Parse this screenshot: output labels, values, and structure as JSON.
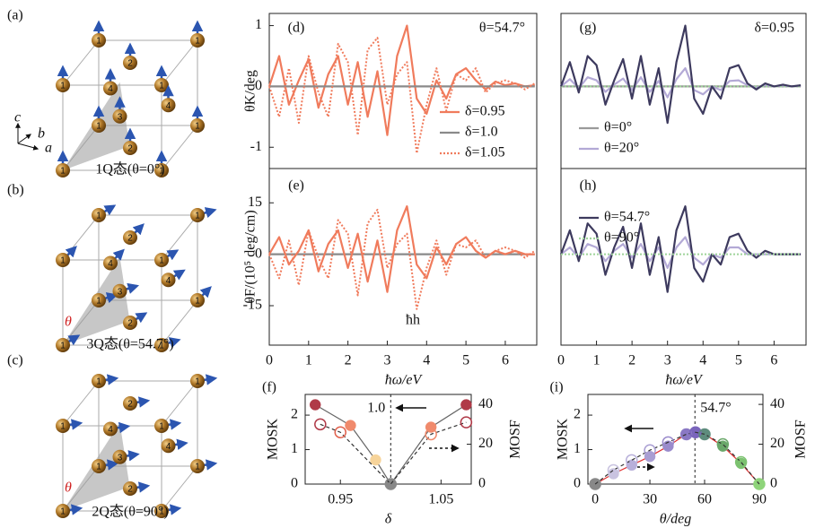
{
  "structures": [
    {
      "label": "(a)",
      "caption": "1Q态(θ=0°)",
      "axes": [
        "c",
        "b",
        "a"
      ],
      "atoms": [
        "1",
        "1",
        "1",
        "1",
        "1",
        "1",
        "1",
        "1",
        "2",
        "2",
        "3",
        "4",
        "4"
      ]
    },
    {
      "label": "(b)",
      "caption": "3Q态(θ=54.7°)",
      "theta": "θ",
      "atoms": [
        "1",
        "1",
        "1",
        "1",
        "1",
        "1",
        "1",
        "1",
        "2",
        "2",
        "3",
        "4",
        "4"
      ]
    },
    {
      "label": "(c)",
      "caption": "2Q态(θ=90°)",
      "theta": "θ",
      "atoms": [
        "1",
        "1",
        "1",
        "1",
        "1",
        "1",
        "1",
        "1",
        "2",
        "2",
        "3",
        "4",
        "4"
      ]
    }
  ],
  "chart_data": [
    {
      "type": "line",
      "label": "(d)",
      "ylabel": "θK/deg",
      "annotation": "θ=54.7°",
      "xlim": [
        0,
        6.8
      ],
      "ylim": [
        -1.35,
        1.2
      ],
      "yticks": [
        -1,
        0,
        1
      ],
      "x": [
        0,
        0.25,
        0.5,
        0.75,
        1,
        1.25,
        1.5,
        1.75,
        2,
        2.25,
        2.5,
        2.75,
        3,
        3.25,
        3.5,
        3.75,
        4,
        4.25,
        4.5,
        4.75,
        5,
        5.25,
        5.5,
        5.75,
        6,
        6.25,
        6.5,
        6.75
      ],
      "series": [
        {
          "name": "δ=0.95",
          "color": "#f07b5c",
          "style": "solid",
          "values": [
            0,
            0.5,
            -0.3,
            0.1,
            0.45,
            -0.35,
            0.2,
            0.5,
            -0.3,
            0.4,
            -0.5,
            0.25,
            -0.8,
            0.5,
            1.0,
            -0.2,
            -0.45,
            0.1,
            -0.2,
            0.2,
            0.3,
            0.1,
            -0.05,
            0.08,
            0.02,
            0.05,
            0,
            0.02
          ]
        },
        {
          "name": "δ=1.0",
          "color": "#8a8a8a",
          "style": "solid",
          "values": [
            0,
            0,
            0,
            0,
            0,
            0,
            0,
            0,
            0,
            0,
            0,
            0,
            0,
            0,
            0,
            0,
            0,
            0,
            0,
            0,
            0,
            0,
            0,
            0,
            0,
            0,
            0,
            0
          ]
        },
        {
          "name": "δ=1.05",
          "color": "#f07b5c",
          "style": "dotted",
          "values": [
            0,
            -0.5,
            0.3,
            -0.6,
            0.5,
            -0.1,
            -0.5,
            0.7,
            0.4,
            -0.8,
            0.6,
            0.8,
            -0.3,
            0.2,
            0.4,
            -1.1,
            -0.3,
            0.3,
            -0.4,
            0.2,
            0.1,
            0.3,
            -0.1,
            0.05,
            0.1,
            0.05,
            -0.05,
            0.05
          ]
        }
      ]
    },
    {
      "type": "line",
      "label": "(e)",
      "ylabel": "θF/(10⁵ deg/cm)",
      "xlabel": "ħω/eV",
      "annotation": "ħh",
      "xlim": [
        0,
        6.8
      ],
      "ylim": [
        -26.5,
        25
      ],
      "xticks": [
        0,
        1,
        2,
        3,
        4,
        5,
        6
      ],
      "yticks": [
        -15,
        0,
        15
      ],
      "x": [
        0,
        0.25,
        0.5,
        0.75,
        1,
        1.25,
        1.5,
        1.75,
        2,
        2.25,
        2.5,
        2.75,
        3,
        3.25,
        3.5,
        3.75,
        4,
        4.25,
        4.5,
        4.75,
        5,
        5.25,
        5.5,
        5.75,
        6,
        6.25,
        6.5,
        6.75
      ],
      "series": [
        {
          "color": "#8a8a8a",
          "style": "solid",
          "values": [
            0,
            0,
            0,
            0,
            0,
            0,
            0,
            0,
            0,
            0,
            0,
            0,
            0,
            0,
            0,
            0,
            0,
            0,
            0,
            0,
            0,
            0,
            0,
            0,
            0,
            0,
            0,
            0
          ]
        },
        {
          "color": "#f07b5c",
          "style": "solid",
          "values": [
            0,
            5,
            -3,
            1,
            7,
            -5,
            3,
            7,
            -4,
            6,
            -8,
            4,
            -11,
            7,
            14,
            -3,
            -7,
            2,
            -3,
            3,
            5,
            1,
            -1,
            1,
            0,
            1,
            0,
            0
          ]
        },
        {
          "color": "#f07b5c",
          "style": "dotted",
          "values": [
            0,
            -7,
            4,
            -9,
            7,
            -1,
            -7,
            10,
            6,
            -12,
            9,
            13,
            -4,
            3,
            6,
            -16,
            -4,
            4,
            -6,
            3,
            2,
            4,
            -1,
            1,
            2,
            1,
            -1,
            1
          ]
        }
      ]
    },
    {
      "type": "line",
      "label": "(g)",
      "annotation": "δ=0.95",
      "xlim": [
        0,
        6.9
      ],
      "ylim": [
        -1.35,
        1.2
      ],
      "x": [
        0,
        0.25,
        0.5,
        0.75,
        1,
        1.25,
        1.5,
        1.75,
        2,
        2.25,
        2.5,
        2.75,
        3,
        3.25,
        3.5,
        3.75,
        4,
        4.25,
        4.5,
        4.75,
        5,
        5.25,
        5.5,
        5.75,
        6,
        6.25,
        6.5,
        6.75
      ],
      "series": [
        {
          "name": "θ=0°",
          "color": "#9a9a9a",
          "style": "solid",
          "values": [
            0,
            0,
            0,
            0,
            0,
            0,
            0,
            0,
            0,
            0,
            0,
            0,
            0,
            0,
            0,
            0,
            0,
            0,
            0,
            0,
            0,
            0,
            0,
            0,
            0,
            0,
            0,
            0
          ]
        },
        {
          "name": "θ=20°",
          "color": "#b3a9d6",
          "style": "solid",
          "values": [
            0,
            0.12,
            -0.03,
            0.15,
            0.1,
            -0.09,
            0.03,
            0.13,
            -0.06,
            0.15,
            -0.09,
            0.09,
            -0.18,
            0.12,
            0.3,
            -0.06,
            -0.13,
            0,
            -0.06,
            0.09,
            0.1,
            0.02,
            -0.02,
            0.02,
            0,
            0.01,
            0,
            0.01
          ]
        },
        {
          "color": "#9fd49a",
          "style": "dotted",
          "values": [
            0,
            0,
            0,
            0,
            0,
            0,
            0,
            0,
            0,
            0,
            0,
            0,
            0,
            0,
            0,
            0,
            0,
            0,
            0,
            0,
            0,
            0,
            0,
            0,
            0,
            0,
            0,
            0
          ]
        },
        {
          "color": "#3d3a5e",
          "style": "solid",
          "values": [
            0,
            0.4,
            -0.1,
            0.5,
            0.35,
            -0.3,
            0.1,
            0.45,
            -0.2,
            0.5,
            -0.3,
            0.3,
            -0.6,
            0.4,
            1.0,
            -0.2,
            -0.45,
            0,
            -0.2,
            0.3,
            0.35,
            0.05,
            -0.05,
            0.05,
            0,
            0.03,
            0,
            0.02
          ]
        }
      ]
    },
    {
      "type": "line",
      "label": "(h)",
      "xlabel": "ħω/eV",
      "xlim": [
        0,
        6.9
      ],
      "ylim": [
        -26.5,
        25
      ],
      "xticks": [
        0,
        1,
        2,
        3,
        4,
        5,
        6
      ],
      "x": [
        0,
        0.25,
        0.5,
        0.75,
        1,
        1.25,
        1.5,
        1.75,
        2,
        2.25,
        2.5,
        2.75,
        3,
        3.25,
        3.5,
        3.75,
        4,
        4.25,
        4.5,
        4.75,
        5,
        5.25,
        5.5,
        5.75,
        6,
        6.25,
        6.5,
        6.75
      ],
      "series": [
        {
          "color": "#b3a9d6",
          "style": "solid",
          "values": [
            0,
            2,
            -1,
            3,
            2,
            -2,
            1,
            3,
            -1,
            3,
            -2,
            2,
            -4,
            2,
            5,
            -1,
            -3,
            0,
            -1,
            2,
            2,
            0,
            0,
            0,
            0,
            0,
            0,
            0
          ]
        },
        {
          "name": "θ=54.7°",
          "color": "#3d3a5e",
          "style": "solid",
          "values": [
            0,
            7,
            -2,
            9,
            6,
            -6,
            2,
            8,
            -4,
            9,
            -6,
            5,
            -11,
            7,
            14,
            -4,
            -8,
            0,
            -3,
            5,
            6,
            1,
            -1,
            1,
            0,
            0,
            0,
            0
          ]
        },
        {
          "name": "θ=90°",
          "color": "#9fd49a",
          "style": "dotted",
          "values": [
            0,
            0,
            0,
            0,
            0,
            0,
            0,
            0,
            0,
            0,
            0,
            0,
            0,
            0,
            0,
            0,
            0,
            0,
            0,
            0,
            0,
            0,
            0,
            0,
            0,
            0,
            0,
            0
          ]
        }
      ]
    },
    {
      "type": "scatter",
      "label": "(f)",
      "xlabel": "δ",
      "ylabel": "MOSK",
      "y2label": "MOSF",
      "xlim": [
        0.915,
        1.08
      ],
      "ylim": [
        0,
        2.6
      ],
      "y2lim": [
        0,
        45
      ],
      "xticks": [
        0.95,
        1.05
      ],
      "yticks": [
        0,
        1,
        2
      ],
      "y2ticks": [
        0,
        20,
        40
      ],
      "vline": {
        "value": 1.0,
        "label": "1.0"
      },
      "series": [
        {
          "filled": true,
          "line_color": "#666666",
          "x": [
            0.925,
            0.96,
            0.985,
            1.0,
            1.04,
            1.075
          ],
          "values": [
            2.3,
            1.7,
            0.7,
            0,
            1.65,
            2.3
          ],
          "colors": [
            "#b03a48",
            "#f08a6c",
            "#f7d49a",
            "#888888",
            "#f08a6c",
            "#b03a48"
          ]
        },
        {
          "filled": false,
          "axis": "y2",
          "line_color": "#333333",
          "x": [
            0.93,
            0.95,
            1.0,
            1.04,
            1.075
          ],
          "values": [
            30,
            26,
            0,
            25,
            31
          ],
          "colors": [
            "#b03a48",
            "#e0604c",
            "#888888",
            "#f08a6c",
            "#b03a48"
          ]
        }
      ]
    },
    {
      "type": "scatter",
      "label": "(i)",
      "xlabel": "θ/deg",
      "ylabel": "MOSK",
      "y2label": "MOSF",
      "xlim": [
        -4,
        92
      ],
      "ylim": [
        0,
        2.6
      ],
      "y2lim": [
        0,
        45
      ],
      "xticks": [
        0,
        30,
        60,
        90
      ],
      "yticks": [
        0,
        1,
        2
      ],
      "y2ticks": [
        0,
        20,
        40
      ],
      "vline": {
        "value": 54.7,
        "label": "54.7°"
      },
      "series": [
        {
          "filled": true,
          "line_color": "#e03030",
          "x": [
            0,
            10,
            20,
            30,
            40,
            50,
            55,
            60,
            70,
            80,
            90
          ],
          "values": [
            0,
            0.3,
            0.55,
            0.8,
            1.1,
            1.45,
            1.5,
            1.45,
            1.1,
            0.6,
            0
          ],
          "colors": [
            "#888888",
            "#c9c3e0",
            "#b8b0da",
            "#a99ed3",
            "#9a8bcc",
            "#8a78c4",
            "#7a65bc",
            "#5e8c7d",
            "#6aa86a",
            "#7cc270",
            "#8ed47a"
          ]
        },
        {
          "filled": false,
          "axis": "y2",
          "line_color": "#333333",
          "x": [
            0,
            10,
            20,
            30,
            40,
            50,
            55,
            60,
            70,
            80,
            90
          ],
          "values": [
            0,
            7,
            12,
            17,
            21,
            25,
            26,
            25,
            20,
            11,
            0
          ],
          "colors": [
            "#888888",
            "#c9c3e0",
            "#b8b0da",
            "#a99ed3",
            "#9a8bcc",
            "#8a78c4",
            "#7a65bc",
            "#5e8c7d",
            "#6aa86a",
            "#7cc270",
            "#8ed47a"
          ]
        }
      ]
    }
  ]
}
